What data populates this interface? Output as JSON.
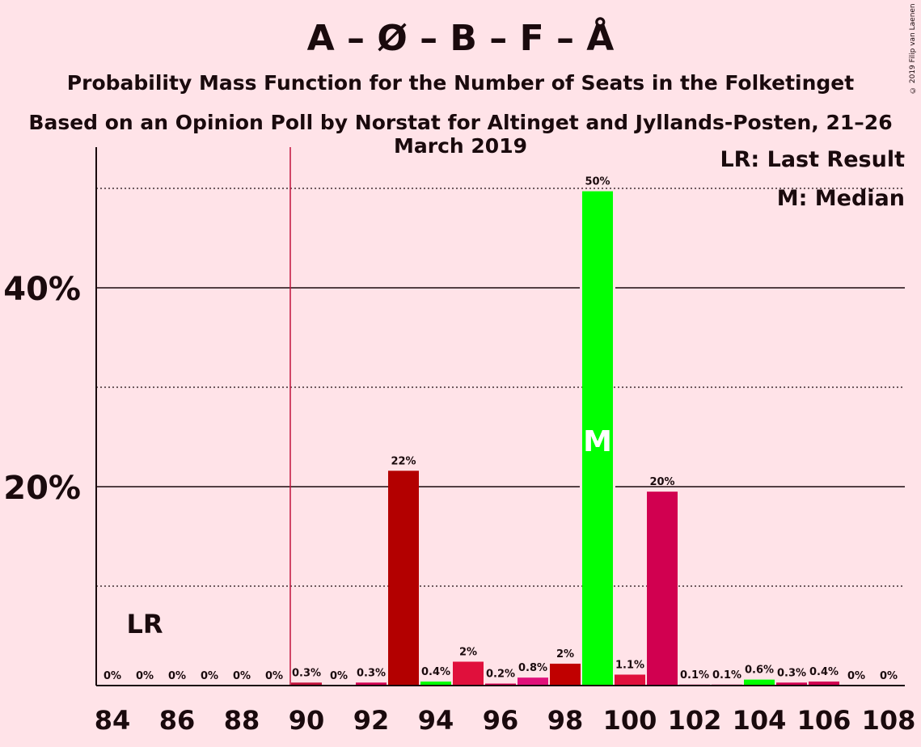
{
  "title": "A – Ø – B – F – Å",
  "subtitle": "Probability Mass Function for the Number of Seats in the Folketinget",
  "subtitle2": "Based on an Opinion Poll by Norstat for Altinget and Jyllands-Posten, 21–26 March 2019",
  "copyright": "© 2019 Filip van Laenen",
  "legend": {
    "lr": "LR: Last Result",
    "m": "M: Median"
  },
  "markers": {
    "lr_label": "LR",
    "median_label": "M"
  },
  "colors": {
    "background": "#FFE3E8",
    "last_result_line": "#C1123B",
    "median_bar": "#00FF00"
  },
  "chart_data": {
    "type": "bar",
    "x": [
      84,
      85,
      86,
      87,
      88,
      89,
      90,
      91,
      92,
      93,
      94,
      95,
      96,
      97,
      98,
      99,
      100,
      101,
      102,
      103,
      104,
      105,
      106,
      107,
      108
    ],
    "values": [
      0,
      0,
      0,
      0,
      0,
      0,
      0.3,
      0,
      0.3,
      21.6,
      0.4,
      2.4,
      0.2,
      0.8,
      2.2,
      49.7,
      1.1,
      19.5,
      0.1,
      0.1,
      0.6,
      0.3,
      0.4,
      0,
      0
    ],
    "labels": [
      "0%",
      "0%",
      "0%",
      "0%",
      "0%",
      "0%",
      "0.3%",
      "0%",
      "0.3%",
      "22%",
      "0.4%",
      "2%",
      "0.2%",
      "0.8%",
      "2%",
      "50%",
      "1.1%",
      "20%",
      "0.1%",
      "0.1%",
      "0.6%",
      "0.3%",
      "0.4%",
      "0%",
      "0%"
    ],
    "bar_colors": [
      "#B30000",
      "#B30000",
      "#B30000",
      "#B30000",
      "#B30000",
      "#B30000",
      "#C1123B",
      "#C1123B",
      "#D10050",
      "#B30000",
      "#00FF00",
      "#E0103C",
      "#D10050",
      "#E0107A",
      "#C00000",
      "#00FF00",
      "#E0103C",
      "#D10050",
      "#D10050",
      "#D10050",
      "#00FF00",
      "#D10050",
      "#D10050",
      "#D10050",
      "#D10050"
    ],
    "xticks": [
      84,
      86,
      88,
      90,
      92,
      94,
      96,
      98,
      100,
      102,
      104,
      106,
      108
    ],
    "yticks": [
      {
        "value": 20,
        "label": "20%"
      },
      {
        "value": 40,
        "label": "40%"
      }
    ],
    "minor_grid": [
      10,
      30,
      50
    ],
    "ylim": [
      0,
      54
    ],
    "last_result": 89.5,
    "median": 99
  }
}
